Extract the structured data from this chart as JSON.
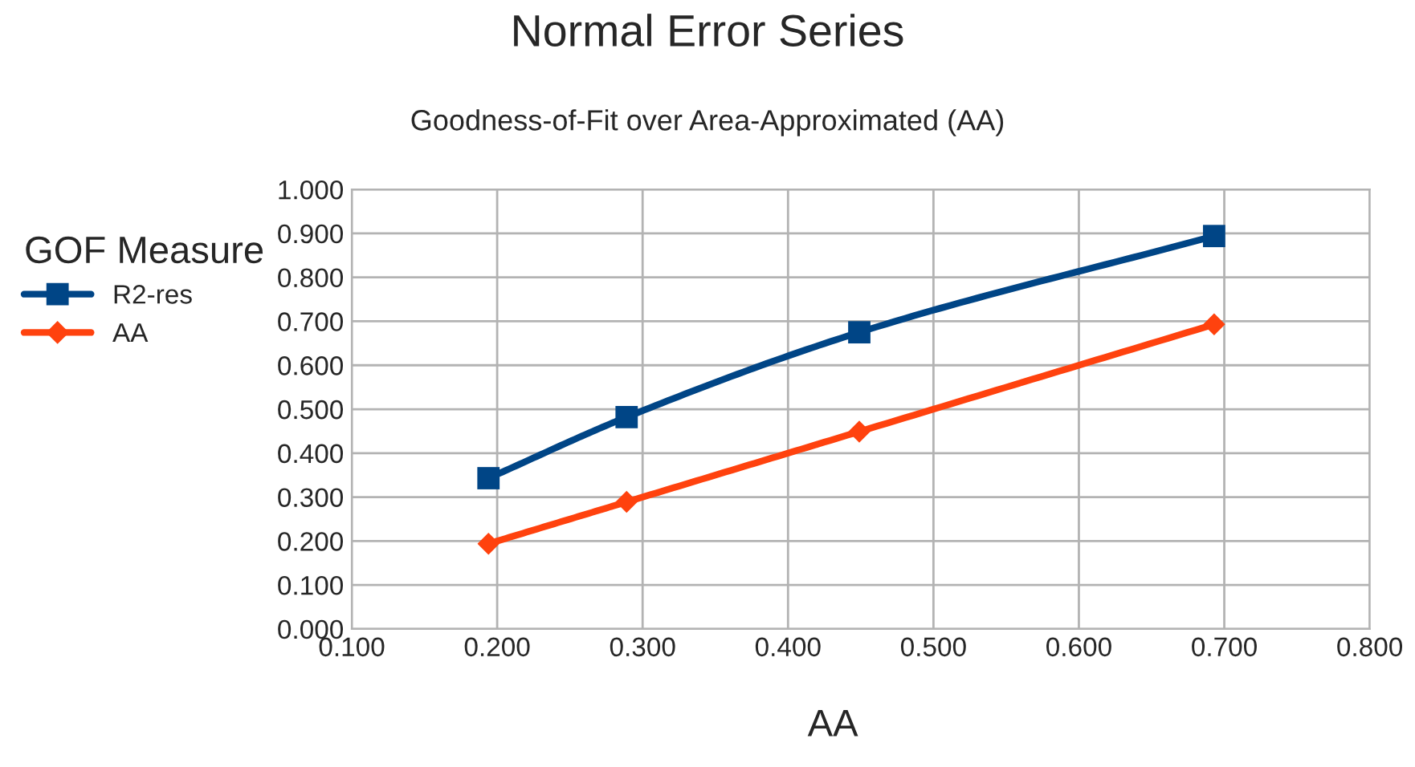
{
  "chart_data": {
    "type": "line",
    "title": "Normal Error Series",
    "subtitle": "Goodness-of-Fit over Area-Approximated (AA)",
    "xlabel": "AA",
    "legend_title": "GOF Measure",
    "legend": "left",
    "x": [
      0.194,
      0.289,
      0.449,
      0.693
    ],
    "series": [
      {
        "name": "R2-res",
        "color": "#004586",
        "marker": "square",
        "values": [
          0.343,
          0.482,
          0.675,
          0.894
        ]
      },
      {
        "name": "AA",
        "color": "#ff420e",
        "marker": "diamond",
        "values": [
          0.194,
          0.289,
          0.449,
          0.693
        ]
      }
    ],
    "xlim": [
      0.1,
      0.8
    ],
    "xticks": [
      {
        "value": 0.1,
        "label": "0.100"
      },
      {
        "value": 0.2,
        "label": "0.200"
      },
      {
        "value": 0.3,
        "label": "0.300"
      },
      {
        "value": 0.4,
        "label": "0.400"
      },
      {
        "value": 0.5,
        "label": "0.500"
      },
      {
        "value": 0.6,
        "label": "0.600"
      },
      {
        "value": 0.7,
        "label": "0.700"
      },
      {
        "value": 0.8,
        "label": "0.800"
      }
    ],
    "ylim": [
      0,
      1
    ],
    "yticks": [
      {
        "value": 0,
        "label": "0.000"
      },
      {
        "value": 0.1,
        "label": "0.100"
      },
      {
        "value": 0.2,
        "label": "0.200"
      },
      {
        "value": 0.3,
        "label": "0.300"
      },
      {
        "value": 0.4,
        "label": "0.400"
      },
      {
        "value": 0.5,
        "label": "0.500"
      },
      {
        "value": 0.6,
        "label": "0.600"
      },
      {
        "value": 0.7,
        "label": "0.700"
      },
      {
        "value": 0.8,
        "label": "0.800"
      },
      {
        "value": 0.9,
        "label": "0.900"
      },
      {
        "value": 1.0,
        "label": "1.000"
      }
    ],
    "grid": true
  }
}
